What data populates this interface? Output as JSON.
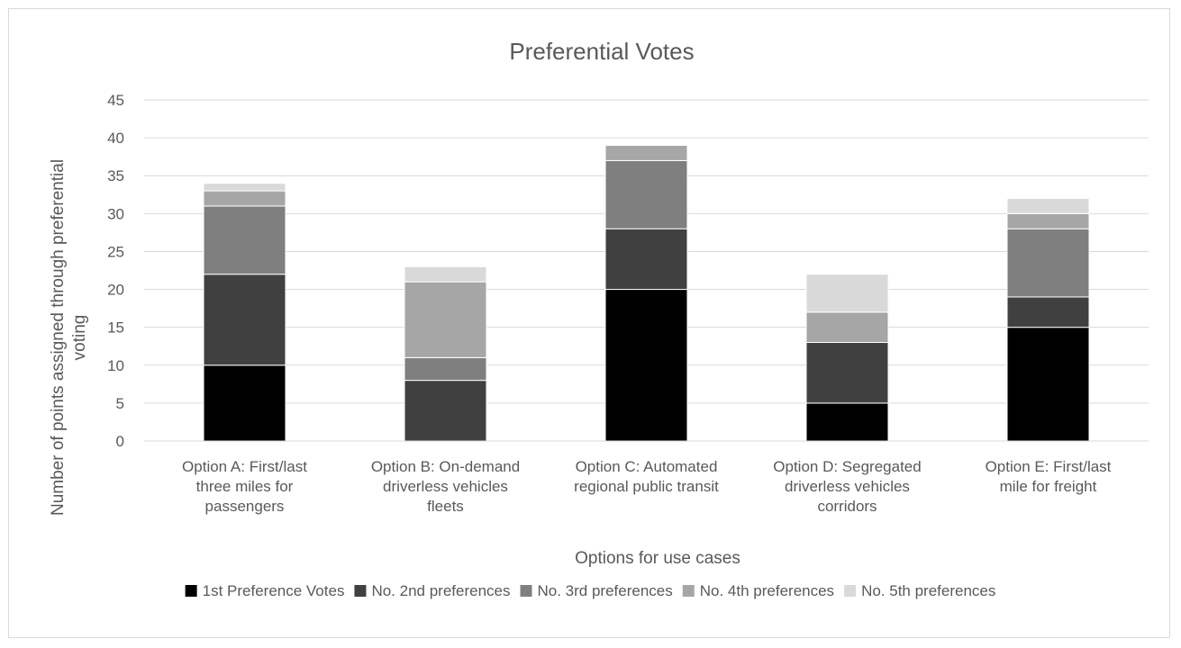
{
  "chart_data": {
    "type": "bar",
    "stacked": true,
    "title": "Preferential Votes",
    "xlabel": "Options for use cases",
    "ylabel": [
      "Number of points assigned through preferential",
      "voting"
    ],
    "ylim": [
      0,
      45
    ],
    "yticks": [
      0,
      5,
      10,
      15,
      20,
      25,
      30,
      35,
      40,
      45
    ],
    "grid": true,
    "legend_position": "bottom",
    "categories": [
      [
        "Option A: First/last",
        "three miles for",
        "passengers"
      ],
      [
        "Option B: On-demand",
        "driverless vehicles",
        "fleets"
      ],
      [
        "Option C: Automated",
        "regional public transit"
      ],
      [
        "Option D: Segregated",
        "driverless vehicles",
        "corridors"
      ],
      [
        "Option E: First/last",
        "mile for freight"
      ]
    ],
    "series": [
      {
        "name": "1st Preference Votes",
        "color": "#000000",
        "values": [
          10,
          0,
          20,
          5,
          15
        ]
      },
      {
        "name": "No. 2nd preferences",
        "color": "#404040",
        "values": [
          12,
          8,
          8,
          8,
          4
        ]
      },
      {
        "name": "No. 3rd preferences",
        "color": "#7f7f7f",
        "values": [
          9,
          3,
          9,
          0,
          9
        ]
      },
      {
        "name": "No. 4th preferences",
        "color": "#a6a6a6",
        "values": [
          2,
          10,
          2,
          4,
          2
        ]
      },
      {
        "name": "No. 5th preferences",
        "color": "#d9d9d9",
        "values": [
          1,
          2,
          0,
          5,
          2
        ]
      }
    ]
  }
}
